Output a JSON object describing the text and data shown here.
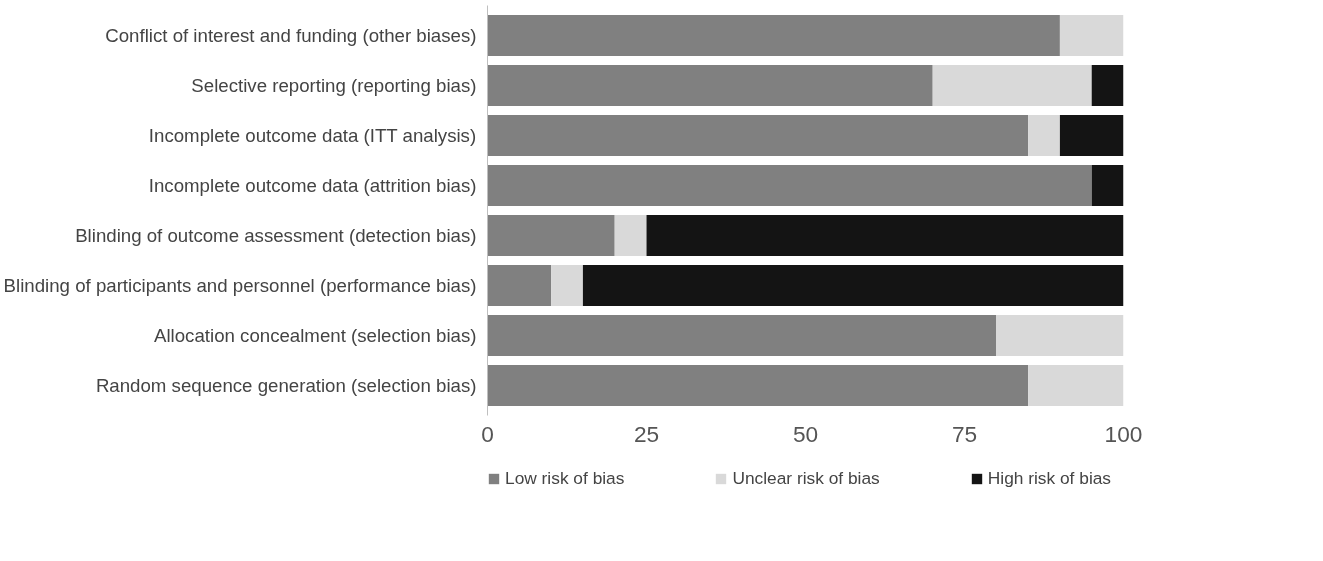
{
  "chart_data": {
    "type": "bar",
    "orientation": "horizontal",
    "stacked": true,
    "categories": [
      "Conflict of interest and funding (other biases)",
      "Selective reporting (reporting bias)",
      "Incomplete outcome data (ITT analysis)",
      "Incomplete outcome data (attrition bias)",
      "Blinding of outcome assessment (detection bias)",
      "Blinding of participants and personnel (performance bias)",
      "Allocation concealment (selection bias)",
      "Random sequence generation (selection bias)"
    ],
    "series": [
      {
        "name": "Low risk of bias",
        "color": "#808080",
        "values": [
          90,
          70,
          85,
          95,
          20,
          10,
          80,
          85
        ]
      },
      {
        "name": "Unclear risk of bias",
        "color": "#d9d9d9",
        "values": [
          10,
          25,
          5,
          0,
          5,
          5,
          20,
          15
        ]
      },
      {
        "name": "High risk of bias",
        "color": "#141414",
        "values": [
          0,
          5,
          10,
          5,
          75,
          85,
          0,
          0
        ]
      }
    ],
    "xlim": [
      0,
      100
    ],
    "xticks": [
      0,
      25,
      50,
      75,
      100
    ],
    "legend": "bottom"
  }
}
